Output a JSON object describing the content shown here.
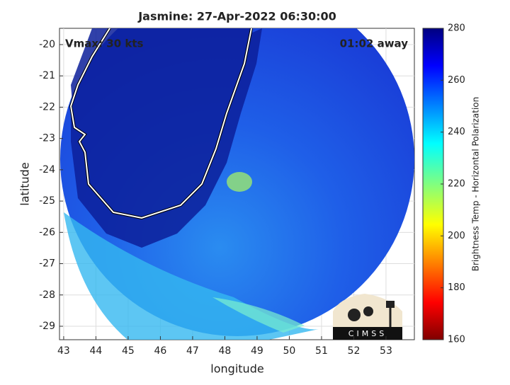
{
  "title": "Jasmine: 27-Apr-2022 06:30:00",
  "annotations": {
    "intensity": "Vmax: 30 kts",
    "time": "01:02 away"
  },
  "x_axis": {
    "label": "longitude",
    "lim": [
      42.87,
      53.88
    ],
    "ticks": [
      43,
      44,
      45,
      46,
      47,
      48,
      49,
      50,
      51,
      52,
      53
    ]
  },
  "y_axis": {
    "label": "latitude",
    "lim": [
      -29.43,
      -19.48
    ],
    "ticks": [
      -20,
      -21,
      -22,
      -23,
      -24,
      -25,
      -26,
      -27,
      -28,
      -29
    ]
  },
  "colorbar": {
    "label": "Brightness Temp - Horizontal Polarization",
    "lim": [
      160,
      280
    ],
    "ticks": [
      160,
      180,
      200,
      220,
      240,
      260,
      280
    ]
  },
  "logo": "CIMSS"
}
